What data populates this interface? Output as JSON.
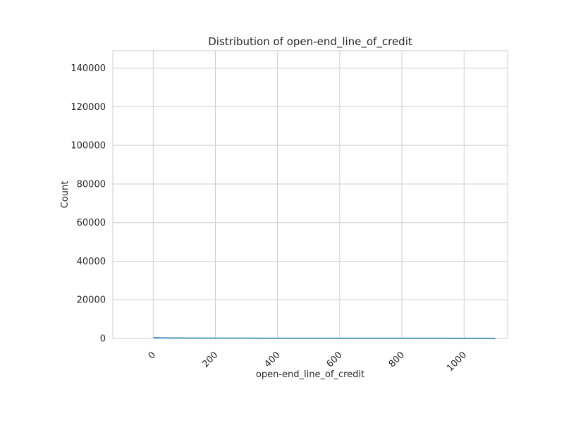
{
  "chart_data": {
    "type": "line",
    "title": "Distribution of open-end_line_of_credit",
    "xlabel": "open-end_line_of_credit",
    "ylabel": "Count",
    "xlim": [
      -130,
      1140
    ],
    "ylim": [
      0,
      149000
    ],
    "x_ticks": [
      0,
      200,
      400,
      600,
      800,
      1000
    ],
    "y_ticks": [
      0,
      20000,
      40000,
      60000,
      80000,
      100000,
      120000,
      140000
    ],
    "grid": true,
    "series": [
      {
        "color": "#1f77b4",
        "x": [
          0,
          10,
          20,
          50,
          100,
          200,
          300,
          400,
          500,
          600,
          700,
          800,
          900,
          1000,
          1100
        ],
        "values": [
          400,
          350,
          300,
          250,
          200,
          150,
          120,
          100,
          80,
          60,
          50,
          40,
          30,
          20,
          10
        ]
      }
    ]
  }
}
